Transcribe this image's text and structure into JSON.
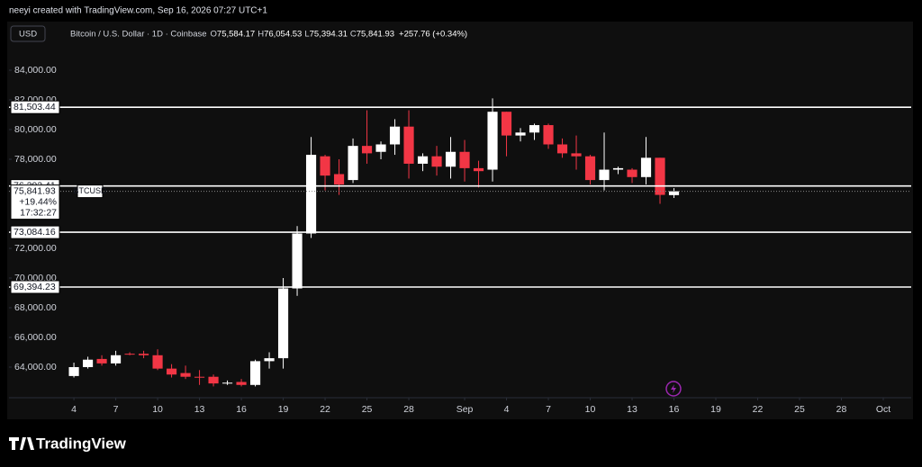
{
  "attribution": "neeyi created with TradingView.com, Sep 16, 2026 07:27 UTC+1",
  "footer": "TradingView",
  "chart_data": {
    "type": "candlestick",
    "currency": "USD",
    "instrument": "Bitcoin / U.S. Dollar · 1D · Coinbase",
    "ohlc_legend": [
      {
        "key": "O",
        "value": "75,584.17"
      },
      {
        "key": "H",
        "value": "76,054.53"
      },
      {
        "key": "L",
        "value": "75,394.31"
      },
      {
        "key": "C",
        "value": "75,841.93"
      }
    ],
    "change": "+257.76 (+0.34%)",
    "up_color": "#ffffff",
    "down_color": "#f23645",
    "x": [
      0,
      1,
      2,
      3,
      4,
      5,
      6,
      7,
      8,
      9,
      10,
      11,
      12,
      13,
      14,
      15,
      16,
      17,
      18,
      19,
      20,
      21,
      22,
      23,
      24,
      25,
      26,
      27,
      28,
      29,
      30,
      31,
      32,
      33,
      34,
      35,
      36,
      37,
      38,
      39,
      40,
      41,
      42,
      43
    ],
    "open": [
      63400,
      64000,
      64550,
      64250,
      64900,
      64900,
      64800,
      63900,
      63600,
      63350,
      63350,
      62950,
      63000,
      62800,
      64400,
      64600,
      69300,
      73000,
      78200,
      77000,
      76600,
      78900,
      78500,
      79000,
      80200,
      77700,
      78200,
      77500,
      78500,
      77400,
      77300,
      81200,
      79600,
      79800,
      80300,
      79000,
      78400,
      78200,
      76600,
      77300,
      77300,
      76800,
      78100,
      75584.17
    ],
    "high": [
      64300,
      64700,
      64800,
      65100,
      65000,
      65100,
      65200,
      64200,
      64100,
      63800,
      63500,
      63100,
      63200,
      64500,
      65000,
      70000,
      73500,
      79500,
      78300,
      78000,
      79400,
      81300,
      79200,
      80700,
      81300,
      78400,
      78900,
      79500,
      79300,
      77900,
      82100,
      81200,
      80100,
      80400,
      80400,
      79400,
      79600,
      78300,
      79800,
      77500,
      77400,
      79500,
      78100,
      76054.53
    ],
    "low": [
      63300,
      63900,
      64100,
      64100,
      64800,
      64600,
      63800,
      63300,
      63200,
      62800,
      62700,
      62800,
      62700,
      62700,
      63900,
      63900,
      68800,
      72700,
      75900,
      75600,
      76400,
      77700,
      78000,
      78300,
      76700,
      77200,
      76900,
      76700,
      76500,
      76100,
      76500,
      78200,
      79200,
      79300,
      78700,
      78100,
      77300,
      76300,
      75900,
      77000,
      76400,
      76300,
      75000,
      75394.31
    ],
    "close": [
      64000,
      64500,
      64250,
      64800,
      64850,
      64800,
      63900,
      63500,
      63350,
      63300,
      62900,
      62950,
      62800,
      64400,
      64600,
      69300,
      73000,
      78300,
      76900,
      76300,
      78900,
      78400,
      79000,
      80200,
      77700,
      78200,
      77500,
      78500,
      77400,
      77200,
      81200,
      79600,
      79800,
      80300,
      79000,
      78400,
      78200,
      76600,
      77300,
      77400,
      76800,
      78100,
      75600,
      75841.93
    ],
    "xlim": [
      -4.65,
      60
    ],
    "xticks": [
      {
        "value": 0,
        "label": "4"
      },
      {
        "value": 3,
        "label": "7"
      },
      {
        "value": 6,
        "label": "10"
      },
      {
        "value": 9,
        "label": "13"
      },
      {
        "value": 12,
        "label": "16"
      },
      {
        "value": 15,
        "label": "19"
      },
      {
        "value": 18,
        "label": "22"
      },
      {
        "value": 21,
        "label": "25"
      },
      {
        "value": 24,
        "label": "28"
      },
      {
        "value": 28,
        "label": "Sep"
      },
      {
        "value": 31,
        "label": "4"
      },
      {
        "value": 34,
        "label": "7"
      },
      {
        "value": 37,
        "label": "10"
      },
      {
        "value": 40,
        "label": "13"
      },
      {
        "value": 43,
        "label": "16"
      },
      {
        "value": 46,
        "label": "19"
      },
      {
        "value": 49,
        "label": "22"
      },
      {
        "value": 52,
        "label": "25"
      },
      {
        "value": 55,
        "label": "28"
      },
      {
        "value": 58,
        "label": "Oct"
      }
    ],
    "ylim": [
      62060,
      87212
    ],
    "yticks": [
      {
        "value": 64000,
        "label": "64,000.00"
      },
      {
        "value": 66000,
        "label": "66,000.00"
      },
      {
        "value": 68000,
        "label": "68,000.00"
      },
      {
        "value": 70000,
        "label": "70,000.00"
      },
      {
        "value": 72000,
        "label": "72,000.00"
      },
      {
        "value": 78000,
        "label": "78,000.00"
      },
      {
        "value": 80000,
        "label": "80,000.00"
      },
      {
        "value": 82000,
        "label": "82,000.00"
      },
      {
        "value": 84000,
        "label": "84,000.00"
      }
    ],
    "levels": [
      {
        "value": 81503.44,
        "label": "81,503.44"
      },
      {
        "value": 76202.41,
        "label": "76,202.41"
      },
      {
        "value": 73084.16,
        "label": "73,084.16"
      },
      {
        "value": 69394.23,
        "label": "69,394.23"
      }
    ],
    "last_price": {
      "value": 75841.93,
      "label": "75,841.93"
    },
    "change_percent": "+19.44%",
    "countdown": "17:32:27",
    "symbol": "BTCUSD"
  }
}
